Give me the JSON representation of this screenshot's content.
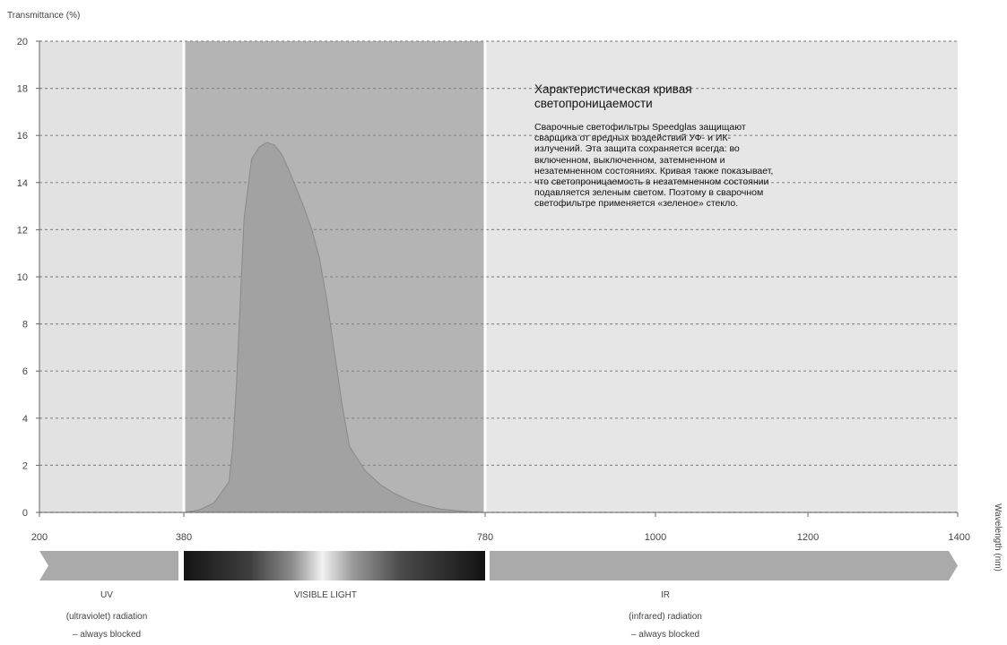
{
  "chart_data": {
    "type": "area",
    "ylabel": "Transmittance (%)",
    "xlabel": "Wavelength (nm)",
    "ylim": [
      0,
      20
    ],
    "yticks": [
      0,
      2,
      4,
      6,
      8,
      10,
      12,
      14,
      16,
      18,
      20
    ],
    "xticks": [
      200,
      380,
      780,
      1000,
      1200,
      1400
    ],
    "grid": "horizontal dashed",
    "regions": [
      {
        "name": "UV",
        "from": 200,
        "to": 380,
        "color": "#e2e2e2"
      },
      {
        "name": "VISIBLE LIGHT",
        "from": 380,
        "to": 780,
        "color": "#b4b4b4"
      },
      {
        "name": "IR",
        "from": 780,
        "to": 1400,
        "color": "#e6e6e6"
      }
    ],
    "series": [
      {
        "color": "#a2a2a2",
        "x": [
          380,
          400,
          420,
          440,
          445,
          450,
          455,
          460,
          470,
          480,
          490,
          500,
          510,
          520,
          530,
          540,
          550,
          560,
          570,
          580,
          590,
          600,
          620,
          640,
          660,
          680,
          700,
          720,
          740,
          760,
          780
        ],
        "y": [
          0,
          0.1,
          0.4,
          1.3,
          2.8,
          5.5,
          9.0,
          12.5,
          15.0,
          15.5,
          15.7,
          15.6,
          15.2,
          14.5,
          13.7,
          12.9,
          12.0,
          10.8,
          9.0,
          6.8,
          4.6,
          2.8,
          1.8,
          1.2,
          0.8,
          0.5,
          0.3,
          0.15,
          0.08,
          0.03,
          0
        ]
      }
    ],
    "annotation": {
      "title": "Характеристическая кривая светопроницаемости",
      "body": "Сварочные светофильтры Speedglas защищают сварщика от вредных воздействий УФ- и ИК-излучений. Эта защита сохраняется всегда: во включенном, выключенном, затемненном и незатемненном состояниях. Кривая также показывает, что светопроницаемость в незатемненном состоянии подавляется зеленым светом. Поэтому в сварочном светофильтре применяется «зеленое» стекло."
    },
    "bands": [
      {
        "label": "UV",
        "lines": [
          "(ultraviolet) radiation",
          "– always blocked"
        ]
      },
      {
        "label": "VISIBLE LIGHT",
        "lines": []
      },
      {
        "label": "IR",
        "lines": [
          "(infrared) radiation",
          "– always blocked"
        ]
      }
    ]
  }
}
